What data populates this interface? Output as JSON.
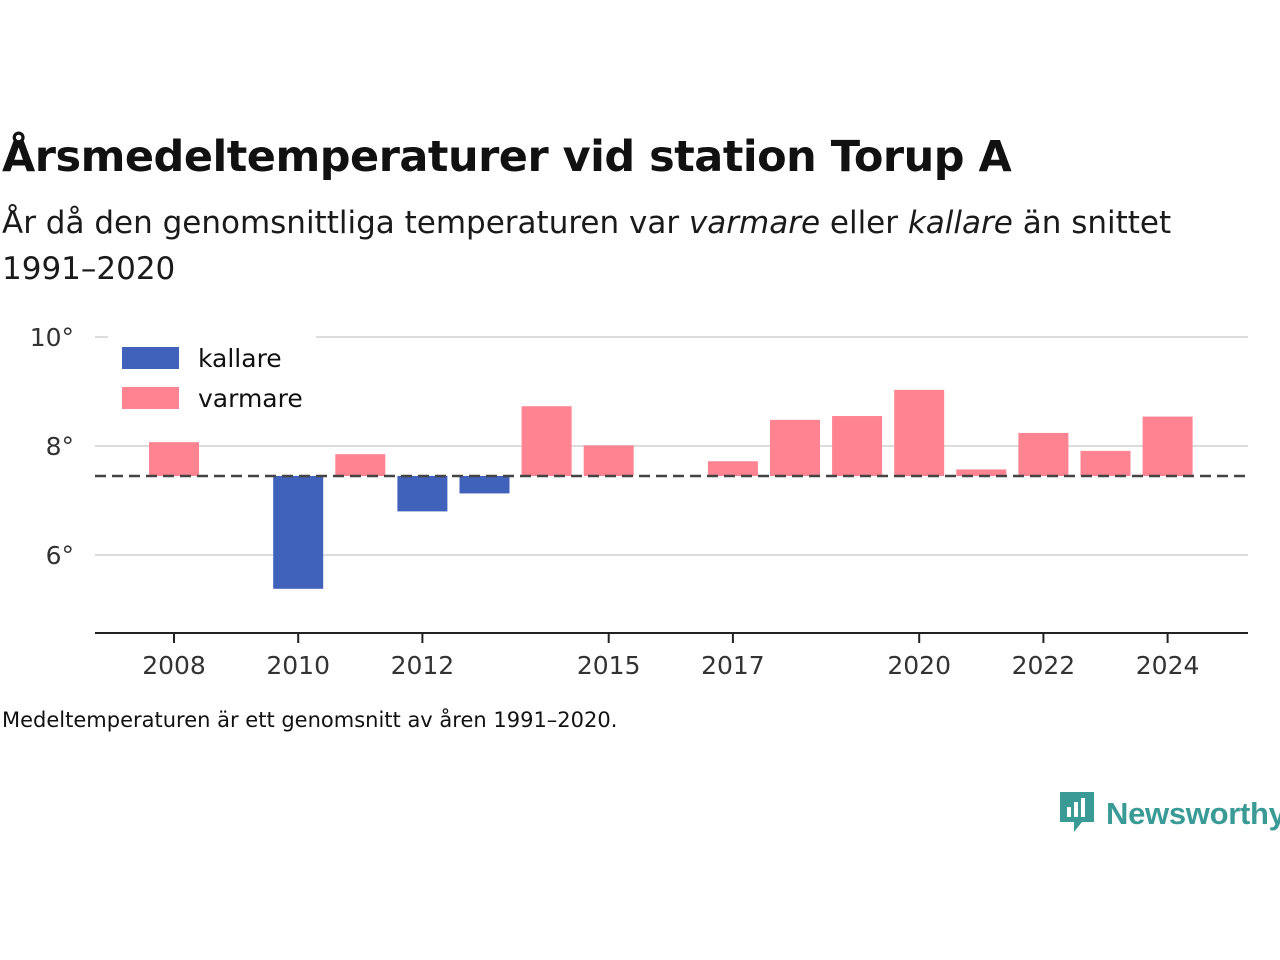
{
  "title": "Årsmedeltemperaturer vid station Torup A",
  "subtitle": {
    "part1": "År då den genomsnittliga temperaturen var ",
    "warm_word": "varmare",
    "part2": " eller ",
    "cold_word": "kallare",
    "part3": " än snittet 1991–2020"
  },
  "footnote": "Medeltemperaturen är ett genomsnitt av åren 1991–2020.",
  "brand": {
    "name": "Newsworthy",
    "icon": "newsworthy-logo-icon",
    "color": "#3a9a95"
  },
  "legend": [
    {
      "label": "kallare",
      "color": "#4062bb"
    },
    {
      "label": "varmare",
      "color": "#ff8391"
    }
  ],
  "chart_data": {
    "type": "bar",
    "title": "Årsmedeltemperaturer vid station Torup A",
    "baseline": 7.45,
    "baseline_style": "dashed",
    "ylim": [
      4.6,
      10.2
    ],
    "y_ticks": [
      {
        "value": 6,
        "label": "6°"
      },
      {
        "value": 8,
        "label": "8°"
      },
      {
        "value": 10,
        "label": "10°"
      }
    ],
    "x_ticks": [
      2008,
      2010,
      2012,
      2015,
      2017,
      2020,
      2022,
      2024
    ],
    "xlim": [
      2006.7,
      2025.3
    ],
    "grid": true,
    "legend_position": "top-left",
    "colors": {
      "kallare": "#4062bb",
      "varmare": "#ff8391"
    },
    "years": [
      2008,
      2010,
      2011,
      2012,
      2013,
      2014,
      2015,
      2017,
      2018,
      2019,
      2020,
      2021,
      2022,
      2023,
      2024
    ],
    "values": [
      8.07,
      5.38,
      7.85,
      6.8,
      7.13,
      8.73,
      8.01,
      7.72,
      8.48,
      8.55,
      9.03,
      7.57,
      8.24,
      7.91,
      8.54
    ]
  }
}
